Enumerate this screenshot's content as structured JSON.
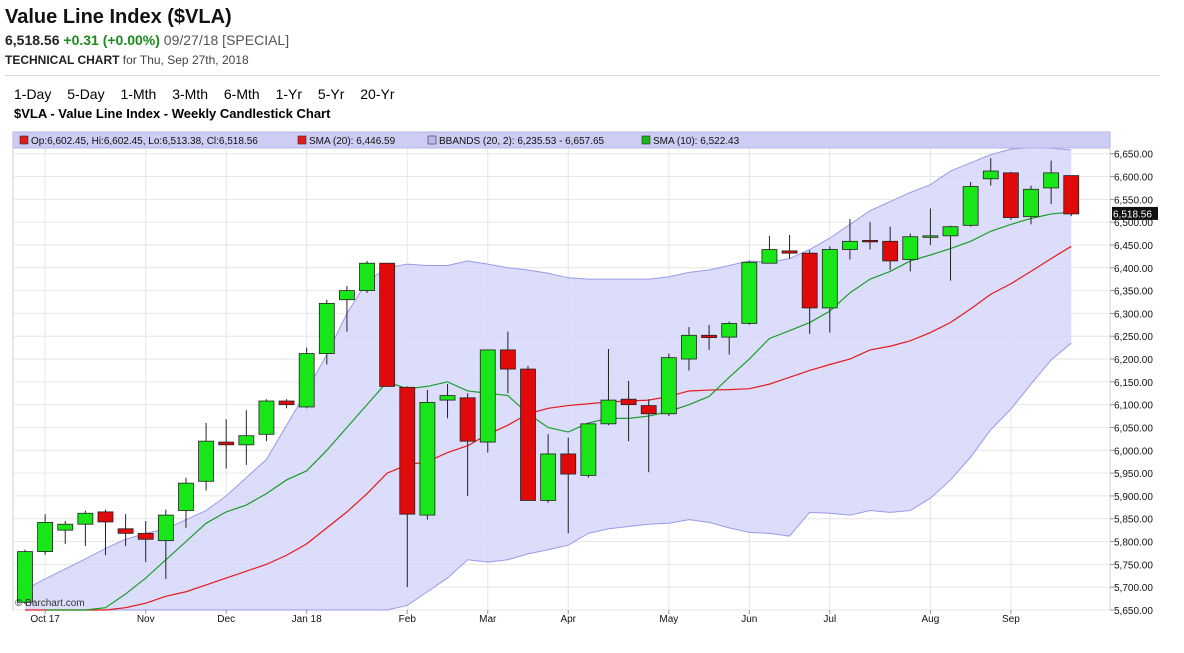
{
  "header": {
    "title": "Value Line Index ($VLA)",
    "last": "6,518.56",
    "change": "+0.31 (+0.00%)",
    "meta": "09/27/18 [SPECIAL]",
    "subtitle_bold": "TECHNICAL CHART",
    "subtitle_rest": " for Thu, Sep 27th, 2018"
  },
  "periods": [
    "1-Day",
    "5-Day",
    "1-Mth",
    "3-Mth",
    "6-Mth",
    "1-Yr",
    "5-Yr",
    "20-Yr"
  ],
  "chart_data": {
    "type": "candlestick",
    "title": "$VLA - Value Line Index - Weekly Candlestick Chart",
    "watermark": "© Barchart.com",
    "ylim": [
      5650,
      6680
    ],
    "y_ticks": [
      5650,
      5700,
      5750,
      5800,
      5850,
      5900,
      5950,
      6000,
      6050,
      6100,
      6150,
      6200,
      6250,
      6300,
      6350,
      6400,
      6450,
      6500,
      6550,
      6600,
      6650
    ],
    "y_tick_labels": [
      "5,650.00",
      "5,700.00",
      "5,750.00",
      "5,800.00",
      "5,850.00",
      "5,900.00",
      "5,950.00",
      "6,000.00",
      "6,050.00",
      "6,100.00",
      "6,150.00",
      "6,200.00",
      "6,250.00",
      "6,300.00",
      "6,350.00",
      "6,400.00",
      "6,450.00",
      "6,500.00",
      "6,550.00",
      "6,600.00",
      "6,650.00"
    ],
    "last_value_label": "6,518.56",
    "x_labels": [
      {
        "label": "Oct 17",
        "index": 1
      },
      {
        "label": "Nov",
        "index": 6
      },
      {
        "label": "Dec",
        "index": 10
      },
      {
        "label": "Jan 18",
        "index": 14
      },
      {
        "label": "Feb",
        "index": 19
      },
      {
        "label": "Mar",
        "index": 23
      },
      {
        "label": "Apr",
        "index": 27
      },
      {
        "label": "May",
        "index": 32
      },
      {
        "label": "Jun",
        "index": 36
      },
      {
        "label": "Jul",
        "index": 40
      },
      {
        "label": "Aug",
        "index": 45
      },
      {
        "label": "Sep",
        "index": 49
      }
    ],
    "legend": [
      {
        "label": "Op:6,602.45, Hi:6,602.45, Lo:6,513.38, Cl:6,518.56",
        "color": "#e11b1b"
      },
      {
        "label": "SMA (20): 6,446.59",
        "color": "#e11b1b"
      },
      {
        "label": "BBANDS (20, 2): 6,235.53 - 6,657.65",
        "color": "#b8b8f0"
      },
      {
        "label": "SMA (10): 6,522.43",
        "color": "#19b419"
      }
    ],
    "colors": {
      "up": "#19e619",
      "down": "#e10a0a",
      "band": "#d6d6fa",
      "band_line": "#9a9aea",
      "sma20": "#e61a1a",
      "sma10": "#1a9e2a"
    },
    "candles": [
      {
        "o": 5667,
        "h": 5782,
        "l": 5663,
        "c": 5778
      },
      {
        "o": 5778,
        "h": 5860,
        "l": 5771,
        "c": 5842
      },
      {
        "o": 5825,
        "h": 5845,
        "l": 5795,
        "c": 5838
      },
      {
        "o": 5838,
        "h": 5868,
        "l": 5790,
        "c": 5862
      },
      {
        "o": 5865,
        "h": 5870,
        "l": 5770,
        "c": 5843
      },
      {
        "o": 5828,
        "h": 5860,
        "l": 5790,
        "c": 5818
      },
      {
        "o": 5818,
        "h": 5845,
        "l": 5755,
        "c": 5805
      },
      {
        "o": 5802,
        "h": 5870,
        "l": 5718,
        "c": 5858
      },
      {
        "o": 5868,
        "h": 5940,
        "l": 5830,
        "c": 5928
      },
      {
        "o": 5932,
        "h": 6060,
        "l": 5912,
        "c": 6020
      },
      {
        "o": 6018,
        "h": 6068,
        "l": 5960,
        "c": 6012
      },
      {
        "o": 6012,
        "h": 6088,
        "l": 5968,
        "c": 6032
      },
      {
        "o": 6035,
        "h": 6112,
        "l": 6020,
        "c": 6108
      },
      {
        "o": 6108,
        "h": 6112,
        "l": 6092,
        "c": 6100
      },
      {
        "o": 6095,
        "h": 6225,
        "l": 6092,
        "c": 6212
      },
      {
        "o": 6212,
        "h": 6330,
        "l": 6188,
        "c": 6322
      },
      {
        "o": 6330,
        "h": 6360,
        "l": 6260,
        "c": 6350
      },
      {
        "o": 6350,
        "h": 6415,
        "l": 6345,
        "c": 6410
      },
      {
        "o": 6410,
        "h": 6410,
        "l": 6140,
        "c": 6140
      },
      {
        "o": 6138,
        "h": 6140,
        "l": 5700,
        "c": 5860
      },
      {
        "o": 5858,
        "h": 6132,
        "l": 5848,
        "c": 6105
      },
      {
        "o": 6110,
        "h": 6145,
        "l": 6070,
        "c": 6120
      },
      {
        "o": 6115,
        "h": 6125,
        "l": 5900,
        "c": 6020
      },
      {
        "o": 6018,
        "h": 6220,
        "l": 5995,
        "c": 6220
      },
      {
        "o": 6220,
        "h": 6260,
        "l": 6125,
        "c": 6178
      },
      {
        "o": 6178,
        "h": 6185,
        "l": 5890,
        "c": 5890
      },
      {
        "o": 5890,
        "h": 6035,
        "l": 5885,
        "c": 5992
      },
      {
        "o": 5992,
        "h": 6028,
        "l": 5818,
        "c": 5948
      },
      {
        "o": 5945,
        "h": 6058,
        "l": 5940,
        "c": 6058
      },
      {
        "o": 6058,
        "h": 6222,
        "l": 6055,
        "c": 6110
      },
      {
        "o": 6112,
        "h": 6152,
        "l": 6020,
        "c": 6100
      },
      {
        "o": 6098,
        "h": 6112,
        "l": 5952,
        "c": 6080
      },
      {
        "o": 6080,
        "h": 6212,
        "l": 6075,
        "c": 6203
      },
      {
        "o": 6200,
        "h": 6270,
        "l": 6175,
        "c": 6252
      },
      {
        "o": 6252,
        "h": 6275,
        "l": 6220,
        "c": 6247
      },
      {
        "o": 6248,
        "h": 6282,
        "l": 6210,
        "c": 6278
      },
      {
        "o": 6278,
        "h": 6415,
        "l": 6275,
        "c": 6412
      },
      {
        "o": 6410,
        "h": 6470,
        "l": 6410,
        "c": 6440
      },
      {
        "o": 6437,
        "h": 6472,
        "l": 6420,
        "c": 6432
      },
      {
        "o": 6432,
        "h": 6438,
        "l": 6255,
        "c": 6312
      },
      {
        "o": 6312,
        "h": 6447,
        "l": 6258,
        "c": 6440
      },
      {
        "o": 6440,
        "h": 6507,
        "l": 6418,
        "c": 6458
      },
      {
        "o": 6460,
        "h": 6500,
        "l": 6440,
        "c": 6458
      },
      {
        "o": 6458,
        "h": 6490,
        "l": 6395,
        "c": 6415
      },
      {
        "o": 6418,
        "h": 6475,
        "l": 6392,
        "c": 6468
      },
      {
        "o": 6468,
        "h": 6530,
        "l": 6450,
        "c": 6470
      },
      {
        "o": 6470,
        "h": 6492,
        "l": 6372,
        "c": 6490
      },
      {
        "o": 6493,
        "h": 6588,
        "l": 6490,
        "c": 6578
      },
      {
        "o": 6595,
        "h": 6640,
        "l": 6580,
        "c": 6612
      },
      {
        "o": 6608,
        "h": 6610,
        "l": 6505,
        "c": 6510
      },
      {
        "o": 6512,
        "h": 6580,
        "l": 6495,
        "c": 6572
      },
      {
        "o": 6575,
        "h": 6635,
        "l": 6540,
        "c": 6608
      },
      {
        "o": 6602,
        "h": 6602,
        "l": 6513,
        "c": 6518
      }
    ],
    "sma10": [
      null,
      5582,
      5605,
      5628,
      5655,
      5685,
      5720,
      5760,
      5800,
      5840,
      5865,
      5880,
      5905,
      5935,
      5955,
      6000,
      6050,
      6100,
      6150,
      6135,
      6140,
      6150,
      6130,
      6125,
      6120,
      6080,
      6050,
      6040,
      6060,
      6070,
      6070,
      6075,
      6085,
      6100,
      6118,
      6160,
      6200,
      6245,
      6262,
      6280,
      6305,
      6345,
      6375,
      6392,
      6415,
      6428,
      6442,
      6458,
      6480,
      6495,
      6508,
      6518,
      6522
    ],
    "sma20": [
      5598,
      5605,
      5615,
      5628,
      5640,
      5655,
      5665,
      5680,
      5690,
      5705,
      5720,
      5735,
      5750,
      5770,
      5795,
      5830,
      5865,
      5905,
      5950,
      5968,
      5975,
      5995,
      6010,
      6035,
      6055,
      6080,
      6092,
      6098,
      6102,
      6106,
      6108,
      6110,
      6118,
      6130,
      6132,
      6133,
      6135,
      6145,
      6160,
      6175,
      6188,
      6200,
      6220,
      6228,
      6240,
      6258,
      6280,
      6310,
      6342,
      6365,
      6392,
      6420,
      6447
    ],
    "bb_upper": [
      5695,
      5718,
      5740,
      5762,
      5785,
      5805,
      5818,
      5828,
      5848,
      5868,
      5900,
      5940,
      5980,
      6055,
      6130,
      6210,
      6300,
      6370,
      6400,
      6408,
      6405,
      6405,
      6415,
      6408,
      6400,
      6395,
      6388,
      6378,
      6375,
      6375,
      6375,
      6375,
      6380,
      6390,
      6395,
      6405,
      6415,
      6412,
      6420,
      6440,
      6465,
      6495,
      6525,
      6545,
      6565,
      6582,
      6612,
      6630,
      6648,
      6660,
      6663,
      6662,
      6658
    ],
    "bb_lower": [
      5495,
      5500,
      5505,
      5510,
      5516,
      5522,
      5530,
      5540,
      5550,
      5562,
      5570,
      5580,
      5588,
      5588,
      5590,
      5598,
      5604,
      5616,
      5640,
      5660,
      5690,
      5720,
      5760,
      5755,
      5760,
      5773,
      5782,
      5792,
      5818,
      5828,
      5833,
      5838,
      5840,
      5848,
      5842,
      5830,
      5820,
      5818,
      5812,
      5864,
      5862,
      5858,
      5868,
      5864,
      5868,
      5895,
      5935,
      5985,
      6045,
      6090,
      6145,
      6198,
      6235
    ]
  }
}
